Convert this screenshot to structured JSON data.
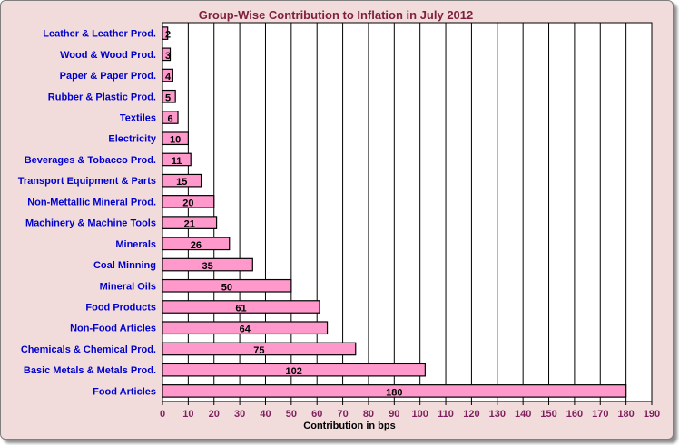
{
  "chart_data": {
    "type": "bar",
    "orientation": "horizontal",
    "title": "Group-Wise Contribution  to Inflation in July 2012",
    "xlabel": "Contribution in bps",
    "ylabel": "",
    "xlim": [
      0,
      190
    ],
    "x_ticks": [
      "0",
      "10",
      "20",
      "30",
      "40",
      "50",
      "60",
      "70",
      "80",
      "90",
      "100",
      "110",
      "120",
      "130",
      "140",
      "150",
      "160",
      "170",
      "180",
      "190"
    ],
    "grid": "vertical",
    "legend": "none",
    "bar_color": "#ff99cc",
    "categories": [
      "Leather & Leather Prod.",
      "Wood & Wood Prod.",
      "Paper & Paper Prod.",
      "Rubber & Plastic Prod.",
      "Textiles",
      "Electricity",
      "Beverages & Tobacco Prod.",
      "Transport Equipment & Parts",
      "Non-Mettallic Mineral Prod.",
      "Machinery & Machine Tools",
      "Minerals",
      "Coal Minning",
      "Mineral Oils",
      "Food Products",
      "Non-Food Articles",
      "Chemicals & Chemical Prod.",
      "Basic Metals & Metals Prod.",
      "Food Articles"
    ],
    "values": [
      2,
      3,
      4,
      5,
      6,
      10,
      11,
      15,
      20,
      21,
      26,
      35,
      50,
      61,
      64,
      75,
      102,
      180
    ]
  }
}
